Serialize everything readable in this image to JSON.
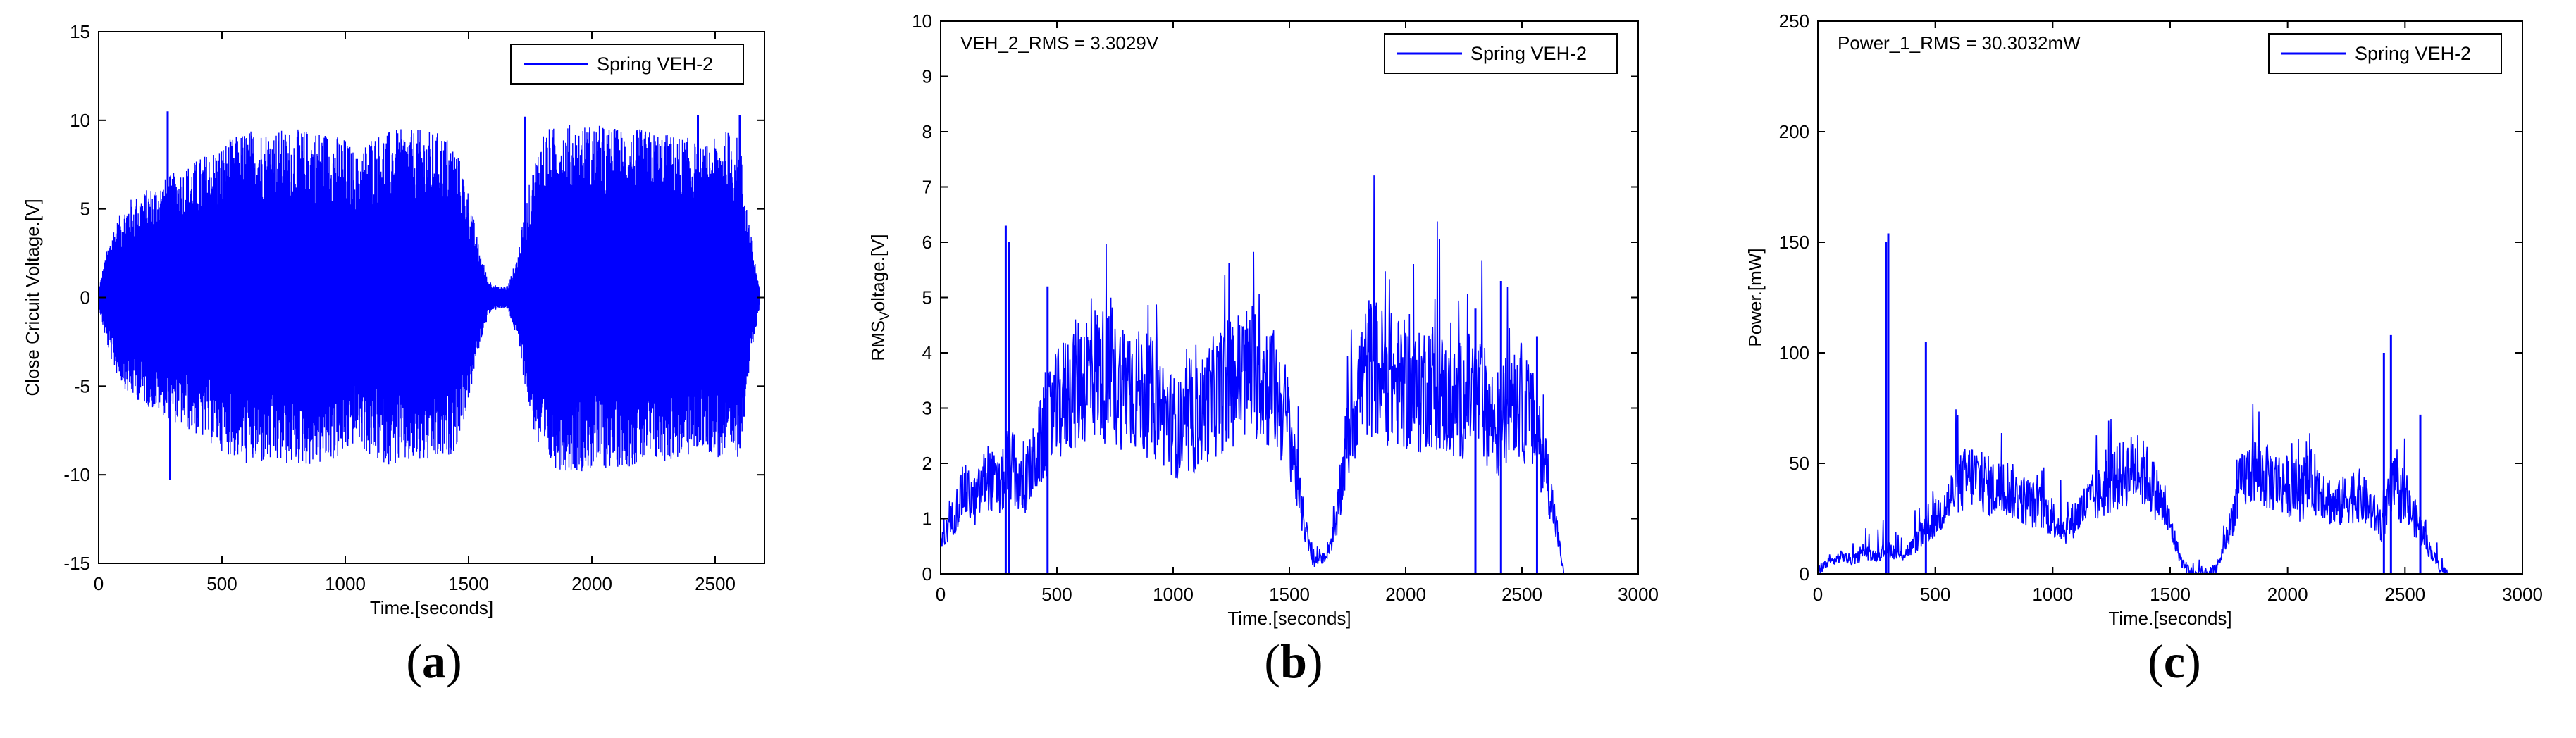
{
  "figure": {
    "panels": [
      {
        "label_open": "(",
        "letter": "a",
        "label_close": ")"
      },
      {
        "label_open": "(",
        "letter": "b",
        "label_close": ")"
      },
      {
        "label_open": "(",
        "letter": "c",
        "label_close": ")"
      }
    ]
  },
  "chart_data": [
    {
      "type": "line",
      "title": "",
      "xlabel": "Time.[seconds]",
      "ylabel": "Close Cricuit Voltage.[V]",
      "xlim": [
        0,
        2700
      ],
      "ylim": [
        -15,
        15
      ],
      "xticks": [
        "0",
        "500",
        "1000",
        "1500",
        "2000",
        "2500"
      ],
      "yticks": [
        "-15",
        "-10",
        "-5",
        "0",
        "5",
        "10",
        "15"
      ],
      "grid": false,
      "legend_position": "top-right",
      "annotation": "",
      "color": "#0000ff",
      "series": [
        {
          "name": "Spring VEH-2",
          "envelope_x": [
            0,
            30,
            60,
            120,
            180,
            240,
            300,
            360,
            420,
            480,
            540,
            600,
            700,
            800,
            900,
            1000,
            1050,
            1100,
            1200,
            1300,
            1400,
            1450,
            1500,
            1540,
            1580,
            1620,
            1660,
            1700,
            1740,
            1780,
            1800,
            1900,
            2000,
            2100,
            2200,
            2300,
            2400,
            2450,
            2500,
            2550,
            2600,
            2640,
            2680
          ],
          "envelope_amplitude": [
            0.5,
            2.5,
            4,
            5.5,
            6,
            6.5,
            7,
            7.5,
            8,
            8.5,
            9,
            9.5,
            9.5,
            9.5,
            9.5,
            9.0,
            8.0,
            9.2,
            9.5,
            9.5,
            9.3,
            8.5,
            6.0,
            3.0,
            1.0,
            0.6,
            0.7,
            2.5,
            6.0,
            8.5,
            9.5,
            9.8,
            9.8,
            9.6,
            9.5,
            9.3,
            9.0,
            8.5,
            9.0,
            9.5,
            9.0,
            4.0,
            0.5
          ],
          "spikes": [
            {
              "x": 280,
              "y": 10.5
            },
            {
              "x": 290,
              "y": -10.3
            },
            {
              "x": 1730,
              "y": 10.2
            },
            {
              "x": 2430,
              "y": 10.3
            },
            {
              "x": 2600,
              "y": 10.3
            }
          ]
        }
      ]
    },
    {
      "type": "line",
      "title": "",
      "xlabel": "Time.[seconds]",
      "ylabel": "RMS",
      "ylabel_sub": "V",
      "ylabel_rest": "oltage.[V]",
      "xlim": [
        0,
        3000
      ],
      "ylim": [
        0,
        10
      ],
      "xticks": [
        "0",
        "500",
        "1000",
        "1500",
        "2000",
        "2500",
        "3000"
      ],
      "yticks": [
        "0",
        "1",
        "2",
        "3",
        "4",
        "5",
        "6",
        "7",
        "8",
        "9",
        "10"
      ],
      "grid": false,
      "legend_position": "top-right",
      "annotation": "VEH_2_RMS = 3.3029V",
      "color": "#0000ff",
      "series": [
        {
          "name": "Spring VEH-2",
          "x": [
            0,
            50,
            100,
            150,
            200,
            250,
            300,
            350,
            400,
            450,
            500,
            550,
            600,
            650,
            700,
            750,
            800,
            850,
            900,
            950,
            1000,
            1050,
            1100,
            1150,
            1200,
            1250,
            1300,
            1350,
            1400,
            1450,
            1500,
            1550,
            1600,
            1650,
            1700,
            1750,
            1800,
            1850,
            1900,
            1950,
            2000,
            2050,
            2100,
            2150,
            2200,
            2250,
            2300,
            2350,
            2400,
            2450,
            2500,
            2550,
            2600,
            2650,
            2680
          ],
          "y": [
            0.5,
            1.0,
            1.5,
            1.3,
            1.8,
            1.5,
            2.0,
            1.5,
            2.0,
            2.6,
            3.0,
            3.3,
            3.5,
            3.7,
            3.6,
            3.4,
            3.5,
            3.3,
            3.2,
            3.0,
            2.7,
            2.5,
            2.8,
            3.1,
            3.3,
            3.5,
            3.6,
            3.7,
            3.5,
            3.2,
            2.7,
            1.2,
            0.2,
            0.3,
            0.8,
            2.5,
            3.4,
            3.8,
            3.6,
            3.5,
            3.4,
            3.2,
            3.5,
            3.3,
            3.0,
            3.2,
            3.3,
            3.0,
            2.5,
            3.4,
            3.1,
            2.7,
            2.0,
            0.8,
            0.0
          ],
          "spikes": [
            {
              "x": 280,
              "y": 6.3
            },
            {
              "x": 295,
              "y": 6.0
            },
            {
              "x": 460,
              "y": 5.2
            },
            {
              "x": 2300,
              "y": 4.8
            },
            {
              "x": 2410,
              "y": 5.3
            },
            {
              "x": 2565,
              "y": 4.3
            }
          ]
        }
      ]
    },
    {
      "type": "line",
      "title": "",
      "xlabel": "Time.[seconds]",
      "ylabel": "Power.[mW]",
      "xlim": [
        0,
        3000
      ],
      "ylim": [
        0,
        250
      ],
      "xticks": [
        "0",
        "500",
        "1000",
        "1500",
        "2000",
        "2500",
        "3000"
      ],
      "yticks": [
        "0",
        "50",
        "100",
        "150",
        "200",
        "250"
      ],
      "grid": false,
      "legend_position": "top-right",
      "annotation": "Power_1_RMS = 30.3032mW",
      "color": "#0000ff",
      "series": [
        {
          "name": "Spring VEH-2",
          "x": [
            0,
            50,
            100,
            150,
            200,
            250,
            300,
            350,
            400,
            450,
            500,
            550,
            600,
            650,
            700,
            750,
            800,
            850,
            900,
            950,
            1000,
            1050,
            1100,
            1150,
            1200,
            1250,
            1300,
            1350,
            1400,
            1450,
            1500,
            1550,
            1600,
            1650,
            1700,
            1750,
            1800,
            1850,
            1900,
            1950,
            2000,
            2050,
            2100,
            2150,
            2200,
            2250,
            2300,
            2350,
            2400,
            2450,
            2500,
            2550,
            2600,
            2650,
            2680
          ],
          "y": [
            2,
            5,
            8,
            6,
            10,
            8,
            12,
            8,
            12,
            18,
            25,
            32,
            40,
            45,
            42,
            38,
            40,
            35,
            32,
            30,
            25,
            20,
            26,
            32,
            36,
            42,
            45,
            48,
            44,
            35,
            22,
            5,
            0,
            0,
            2,
            20,
            40,
            48,
            44,
            42,
            40,
            36,
            42,
            38,
            30,
            34,
            36,
            30,
            22,
            40,
            32,
            24,
            12,
            3,
            0
          ],
          "spikes": [
            {
              "x": 290,
              "y": 150
            },
            {
              "x": 300,
              "y": 154
            },
            {
              "x": 460,
              "y": 105
            },
            {
              "x": 2410,
              "y": 100
            },
            {
              "x": 2440,
              "y": 108
            },
            {
              "x": 2565,
              "y": 72
            }
          ]
        }
      ]
    }
  ]
}
